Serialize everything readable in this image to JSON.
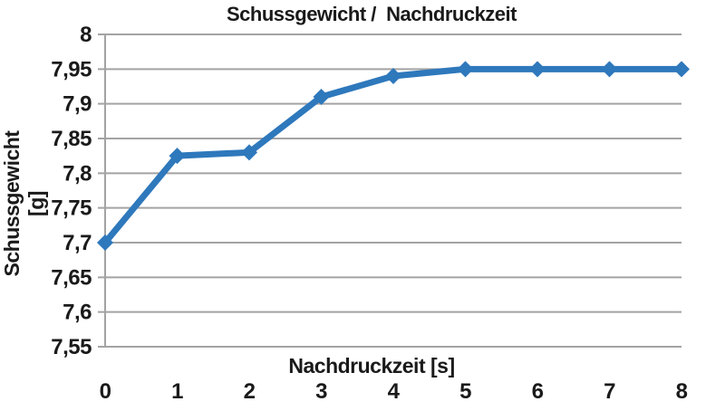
{
  "chart_data": {
    "type": "line",
    "title": "Schussgewicht /  Nachdruckzeit",
    "xlabel": "Nachdruckzeit [s]",
    "ylabel": "Schussgewicht [g]",
    "x": [
      0,
      1,
      2,
      3,
      4,
      5,
      6,
      7,
      8
    ],
    "xtick_labels": [
      "0",
      "1",
      "2",
      "3",
      "4",
      "5",
      "6",
      "7",
      "8"
    ],
    "series": [
      {
        "name": "Schussgewicht",
        "values": [
          7.7,
          7.825,
          7.83,
          7.91,
          7.94,
          7.95,
          7.95,
          7.95,
          7.95
        ]
      }
    ],
    "xlim": [
      0,
      8
    ],
    "ylim": [
      7.55,
      8.0
    ],
    "ytick_step": 0.05,
    "ytick_labels": [
      "7,55",
      "7,6",
      "7,65",
      "7,7",
      "7,75",
      "7,8",
      "7,85",
      "7,9",
      "7,95",
      "8"
    ],
    "decimal_separator": ",",
    "grid": "horizontal",
    "legend": "none",
    "marker": "diamond",
    "colors": {
      "line": "#2e78bc",
      "grid": "#a3a3a3",
      "axis": "#a3a3a3",
      "text": "#1a1a1a",
      "background": "#ffffff"
    }
  }
}
